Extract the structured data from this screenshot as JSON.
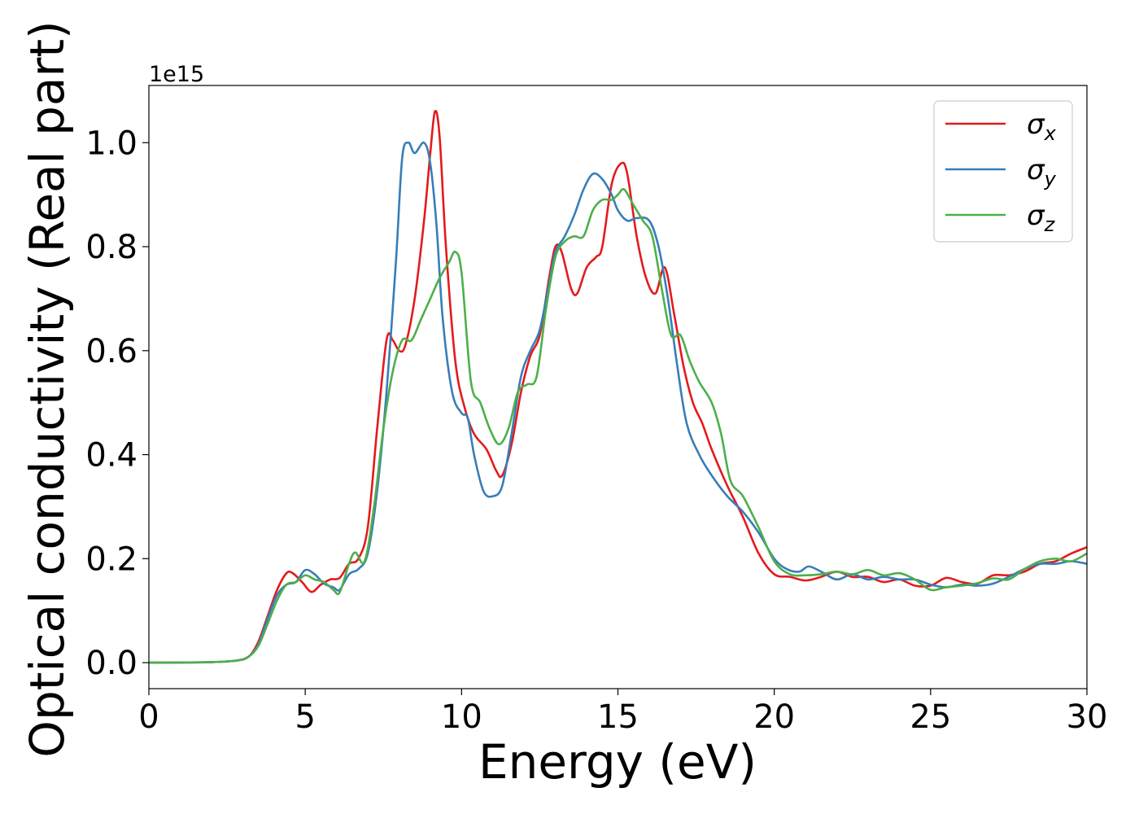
{
  "chart_data": {
    "type": "line",
    "title": "",
    "xlabel": "Energy (eV)",
    "ylabel": "Optical conductivity (Real part)",
    "y_offset_label": "1e15",
    "xlim": [
      0,
      30
    ],
    "ylim": [
      -0.05,
      1.11
    ],
    "xticks": [
      0,
      5,
      10,
      15,
      20,
      25,
      30
    ],
    "yticks": [
      0.0,
      0.2,
      0.4,
      0.6,
      0.8,
      1.0
    ],
    "ytick_labels": [
      "0.0",
      "0.2",
      "0.4",
      "0.6",
      "0.8",
      "1.0"
    ],
    "grid": false,
    "legend_position": "top-right",
    "series": [
      {
        "name": "σx",
        "symbol": "σ",
        "subscript": "x",
        "color": "#e41a1c",
        "points": [
          [
            0,
            0.0
          ],
          [
            2,
            0.001
          ],
          [
            2.8,
            0.004
          ],
          [
            3.2,
            0.012
          ],
          [
            3.5,
            0.04
          ],
          [
            3.8,
            0.09
          ],
          [
            4.1,
            0.14
          ],
          [
            4.4,
            0.172
          ],
          [
            4.6,
            0.172
          ],
          [
            4.9,
            0.155
          ],
          [
            5.2,
            0.136
          ],
          [
            5.5,
            0.15
          ],
          [
            5.8,
            0.16
          ],
          [
            6.1,
            0.163
          ],
          [
            6.4,
            0.19
          ],
          [
            6.7,
            0.2
          ],
          [
            7.0,
            0.26
          ],
          [
            7.3,
            0.45
          ],
          [
            7.6,
            0.62
          ],
          [
            7.8,
            0.62
          ],
          [
            8.0,
            0.6
          ],
          [
            8.2,
            0.61
          ],
          [
            8.5,
            0.7
          ],
          [
            8.8,
            0.85
          ],
          [
            9.0,
            0.98
          ],
          [
            9.15,
            1.06
          ],
          [
            9.3,
            1.01
          ],
          [
            9.5,
            0.8
          ],
          [
            9.8,
            0.58
          ],
          [
            10.1,
            0.49
          ],
          [
            10.4,
            0.44
          ],
          [
            10.8,
            0.41
          ],
          [
            11.1,
            0.37
          ],
          [
            11.3,
            0.36
          ],
          [
            11.6,
            0.42
          ],
          [
            11.9,
            0.52
          ],
          [
            12.2,
            0.59
          ],
          [
            12.5,
            0.63
          ],
          [
            12.8,
            0.74
          ],
          [
            13.0,
            0.8
          ],
          [
            13.2,
            0.79
          ],
          [
            13.5,
            0.72
          ],
          [
            13.7,
            0.71
          ],
          [
            14.0,
            0.76
          ],
          [
            14.3,
            0.78
          ],
          [
            14.5,
            0.8
          ],
          [
            14.8,
            0.92
          ],
          [
            15.1,
            0.96
          ],
          [
            15.3,
            0.94
          ],
          [
            15.6,
            0.82
          ],
          [
            15.9,
            0.74
          ],
          [
            16.2,
            0.71
          ],
          [
            16.5,
            0.76
          ],
          [
            16.8,
            0.67
          ],
          [
            17.1,
            0.57
          ],
          [
            17.4,
            0.5
          ],
          [
            17.7,
            0.46
          ],
          [
            18.0,
            0.41
          ],
          [
            18.5,
            0.34
          ],
          [
            19.0,
            0.28
          ],
          [
            19.5,
            0.21
          ],
          [
            20.0,
            0.17
          ],
          [
            20.5,
            0.165
          ],
          [
            21.0,
            0.158
          ],
          [
            21.5,
            0.165
          ],
          [
            22.0,
            0.175
          ],
          [
            22.5,
            0.165
          ],
          [
            23.0,
            0.165
          ],
          [
            23.5,
            0.155
          ],
          [
            24.0,
            0.16
          ],
          [
            24.5,
            0.148
          ],
          [
            25.0,
            0.148
          ],
          [
            25.5,
            0.163
          ],
          [
            26.0,
            0.155
          ],
          [
            26.5,
            0.152
          ],
          [
            27.0,
            0.168
          ],
          [
            27.5,
            0.168
          ],
          [
            28.0,
            0.175
          ],
          [
            28.5,
            0.19
          ],
          [
            29.0,
            0.195
          ],
          [
            29.5,
            0.21
          ],
          [
            30.0,
            0.222
          ]
        ]
      },
      {
        "name": "σy",
        "symbol": "σ",
        "subscript": "y",
        "color": "#377eb8",
        "points": [
          [
            0,
            0.0
          ],
          [
            2,
            0.001
          ],
          [
            2.8,
            0.004
          ],
          [
            3.2,
            0.012
          ],
          [
            3.5,
            0.035
          ],
          [
            3.8,
            0.085
          ],
          [
            4.1,
            0.13
          ],
          [
            4.4,
            0.15
          ],
          [
            4.7,
            0.155
          ],
          [
            5.0,
            0.178
          ],
          [
            5.3,
            0.17
          ],
          [
            5.6,
            0.152
          ],
          [
            5.9,
            0.145
          ],
          [
            6.1,
            0.14
          ],
          [
            6.4,
            0.17
          ],
          [
            6.7,
            0.18
          ],
          [
            7.0,
            0.21
          ],
          [
            7.3,
            0.33
          ],
          [
            7.6,
            0.52
          ],
          [
            7.9,
            0.77
          ],
          [
            8.1,
            0.97
          ],
          [
            8.3,
            1.0
          ],
          [
            8.5,
            0.98
          ],
          [
            8.8,
            1.0
          ],
          [
            9.0,
            0.96
          ],
          [
            9.2,
            0.84
          ],
          [
            9.4,
            0.66
          ],
          [
            9.7,
            0.52
          ],
          [
            10.0,
            0.48
          ],
          [
            10.2,
            0.47
          ],
          [
            10.4,
            0.4
          ],
          [
            10.7,
            0.33
          ],
          [
            11.0,
            0.32
          ],
          [
            11.3,
            0.34
          ],
          [
            11.6,
            0.44
          ],
          [
            11.9,
            0.55
          ],
          [
            12.2,
            0.6
          ],
          [
            12.5,
            0.64
          ],
          [
            12.8,
            0.73
          ],
          [
            13.0,
            0.79
          ],
          [
            13.3,
            0.82
          ],
          [
            13.6,
            0.86
          ],
          [
            13.9,
            0.91
          ],
          [
            14.2,
            0.94
          ],
          [
            14.5,
            0.93
          ],
          [
            14.8,
            0.9
          ],
          [
            15.0,
            0.87
          ],
          [
            15.3,
            0.85
          ],
          [
            15.6,
            0.855
          ],
          [
            16.0,
            0.85
          ],
          [
            16.3,
            0.8
          ],
          [
            16.6,
            0.7
          ],
          [
            16.9,
            0.57
          ],
          [
            17.2,
            0.46
          ],
          [
            17.6,
            0.4
          ],
          [
            18.0,
            0.36
          ],
          [
            18.5,
            0.32
          ],
          [
            19.0,
            0.29
          ],
          [
            19.5,
            0.25
          ],
          [
            20.0,
            0.2
          ],
          [
            20.4,
            0.18
          ],
          [
            20.8,
            0.175
          ],
          [
            21.1,
            0.185
          ],
          [
            21.5,
            0.175
          ],
          [
            22.0,
            0.16
          ],
          [
            22.5,
            0.17
          ],
          [
            23.0,
            0.16
          ],
          [
            23.5,
            0.165
          ],
          [
            24.0,
            0.16
          ],
          [
            24.5,
            0.16
          ],
          [
            25.0,
            0.15
          ],
          [
            25.5,
            0.145
          ],
          [
            26.0,
            0.15
          ],
          [
            26.5,
            0.148
          ],
          [
            27.0,
            0.152
          ],
          [
            27.5,
            0.165
          ],
          [
            28.0,
            0.18
          ],
          [
            28.5,
            0.19
          ],
          [
            29.0,
            0.19
          ],
          [
            29.5,
            0.195
          ],
          [
            30.0,
            0.19
          ]
        ]
      },
      {
        "name": "σz",
        "symbol": "σ",
        "subscript": "z",
        "color": "#4daf4a",
        "points": [
          [
            0,
            0.0
          ],
          [
            2,
            0.001
          ],
          [
            2.8,
            0.004
          ],
          [
            3.2,
            0.012
          ],
          [
            3.5,
            0.032
          ],
          [
            3.8,
            0.075
          ],
          [
            4.1,
            0.12
          ],
          [
            4.4,
            0.15
          ],
          [
            4.7,
            0.155
          ],
          [
            5.0,
            0.168
          ],
          [
            5.3,
            0.16
          ],
          [
            5.6,
            0.155
          ],
          [
            5.9,
            0.14
          ],
          [
            6.1,
            0.135
          ],
          [
            6.4,
            0.19
          ],
          [
            6.6,
            0.212
          ],
          [
            6.9,
            0.195
          ],
          [
            7.2,
            0.3
          ],
          [
            7.5,
            0.45
          ],
          [
            7.8,
            0.56
          ],
          [
            8.1,
            0.62
          ],
          [
            8.4,
            0.62
          ],
          [
            8.7,
            0.66
          ],
          [
            9.0,
            0.7
          ],
          [
            9.3,
            0.74
          ],
          [
            9.6,
            0.77
          ],
          [
            9.8,
            0.79
          ],
          [
            10.0,
            0.75
          ],
          [
            10.3,
            0.54
          ],
          [
            10.6,
            0.5
          ],
          [
            10.9,
            0.45
          ],
          [
            11.2,
            0.42
          ],
          [
            11.5,
            0.45
          ],
          [
            11.8,
            0.52
          ],
          [
            12.1,
            0.535
          ],
          [
            12.4,
            0.55
          ],
          [
            12.7,
            0.68
          ],
          [
            13.0,
            0.78
          ],
          [
            13.3,
            0.81
          ],
          [
            13.6,
            0.82
          ],
          [
            13.9,
            0.82
          ],
          [
            14.2,
            0.87
          ],
          [
            14.5,
            0.89
          ],
          [
            14.8,
            0.89
          ],
          [
            15.0,
            0.9
          ],
          [
            15.2,
            0.91
          ],
          [
            15.5,
            0.88
          ],
          [
            15.8,
            0.85
          ],
          [
            16.1,
            0.82
          ],
          [
            16.4,
            0.72
          ],
          [
            16.7,
            0.63
          ],
          [
            17.0,
            0.63
          ],
          [
            17.3,
            0.58
          ],
          [
            17.6,
            0.54
          ],
          [
            18.0,
            0.5
          ],
          [
            18.3,
            0.44
          ],
          [
            18.6,
            0.35
          ],
          [
            19.0,
            0.32
          ],
          [
            19.5,
            0.26
          ],
          [
            20.0,
            0.195
          ],
          [
            20.5,
            0.17
          ],
          [
            21.0,
            0.168
          ],
          [
            21.5,
            0.17
          ],
          [
            22.0,
            0.175
          ],
          [
            22.5,
            0.17
          ],
          [
            23.0,
            0.178
          ],
          [
            23.5,
            0.168
          ],
          [
            24.0,
            0.172
          ],
          [
            24.5,
            0.16
          ],
          [
            25.0,
            0.14
          ],
          [
            25.5,
            0.145
          ],
          [
            26.0,
            0.148
          ],
          [
            26.5,
            0.153
          ],
          [
            27.0,
            0.162
          ],
          [
            27.5,
            0.16
          ],
          [
            28.0,
            0.18
          ],
          [
            28.5,
            0.195
          ],
          [
            29.0,
            0.2
          ],
          [
            29.5,
            0.195
          ],
          [
            30.0,
            0.21
          ]
        ]
      }
    ]
  }
}
